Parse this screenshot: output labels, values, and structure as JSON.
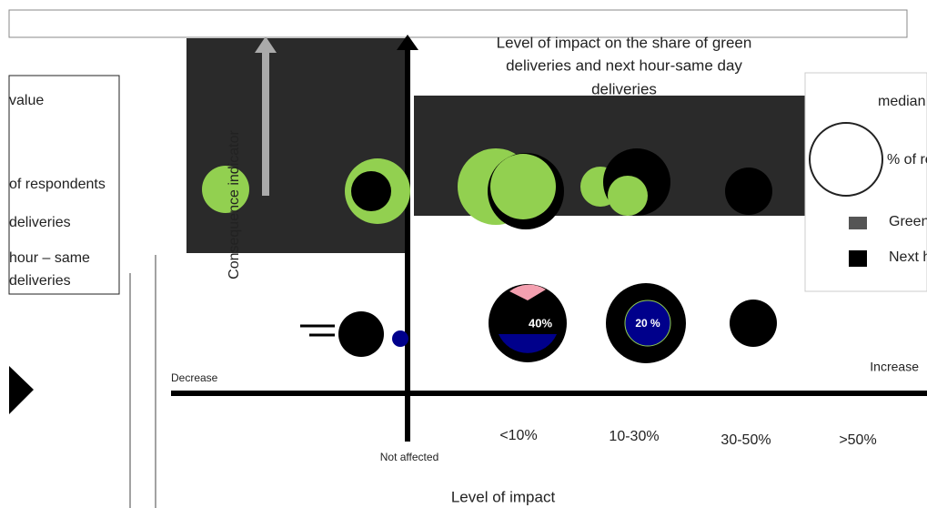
{
  "title_lines": [
    "Level of impact on the share of green",
    "deliveries and next hour-same day",
    "deliveries"
  ],
  "y_axis_label": "Consequence indicator",
  "x_axis_label": "Level of impact",
  "decrease_label": "Decrease",
  "increase_label": "Increase",
  "categories": [
    "Not affected",
    "<10%",
    "10-30%",
    "30-50%",
    ">50%"
  ],
  "legend": [
    "median value",
    "% of respondents",
    "Green deliveries",
    "Next hour – same day deliveries"
  ],
  "left_legend": [
    "value",
    "of respondents",
    "deliveries",
    "hour – same",
    "deliveries"
  ],
  "bubble_labels": [
    "40%",
    "20 %"
  ]
}
